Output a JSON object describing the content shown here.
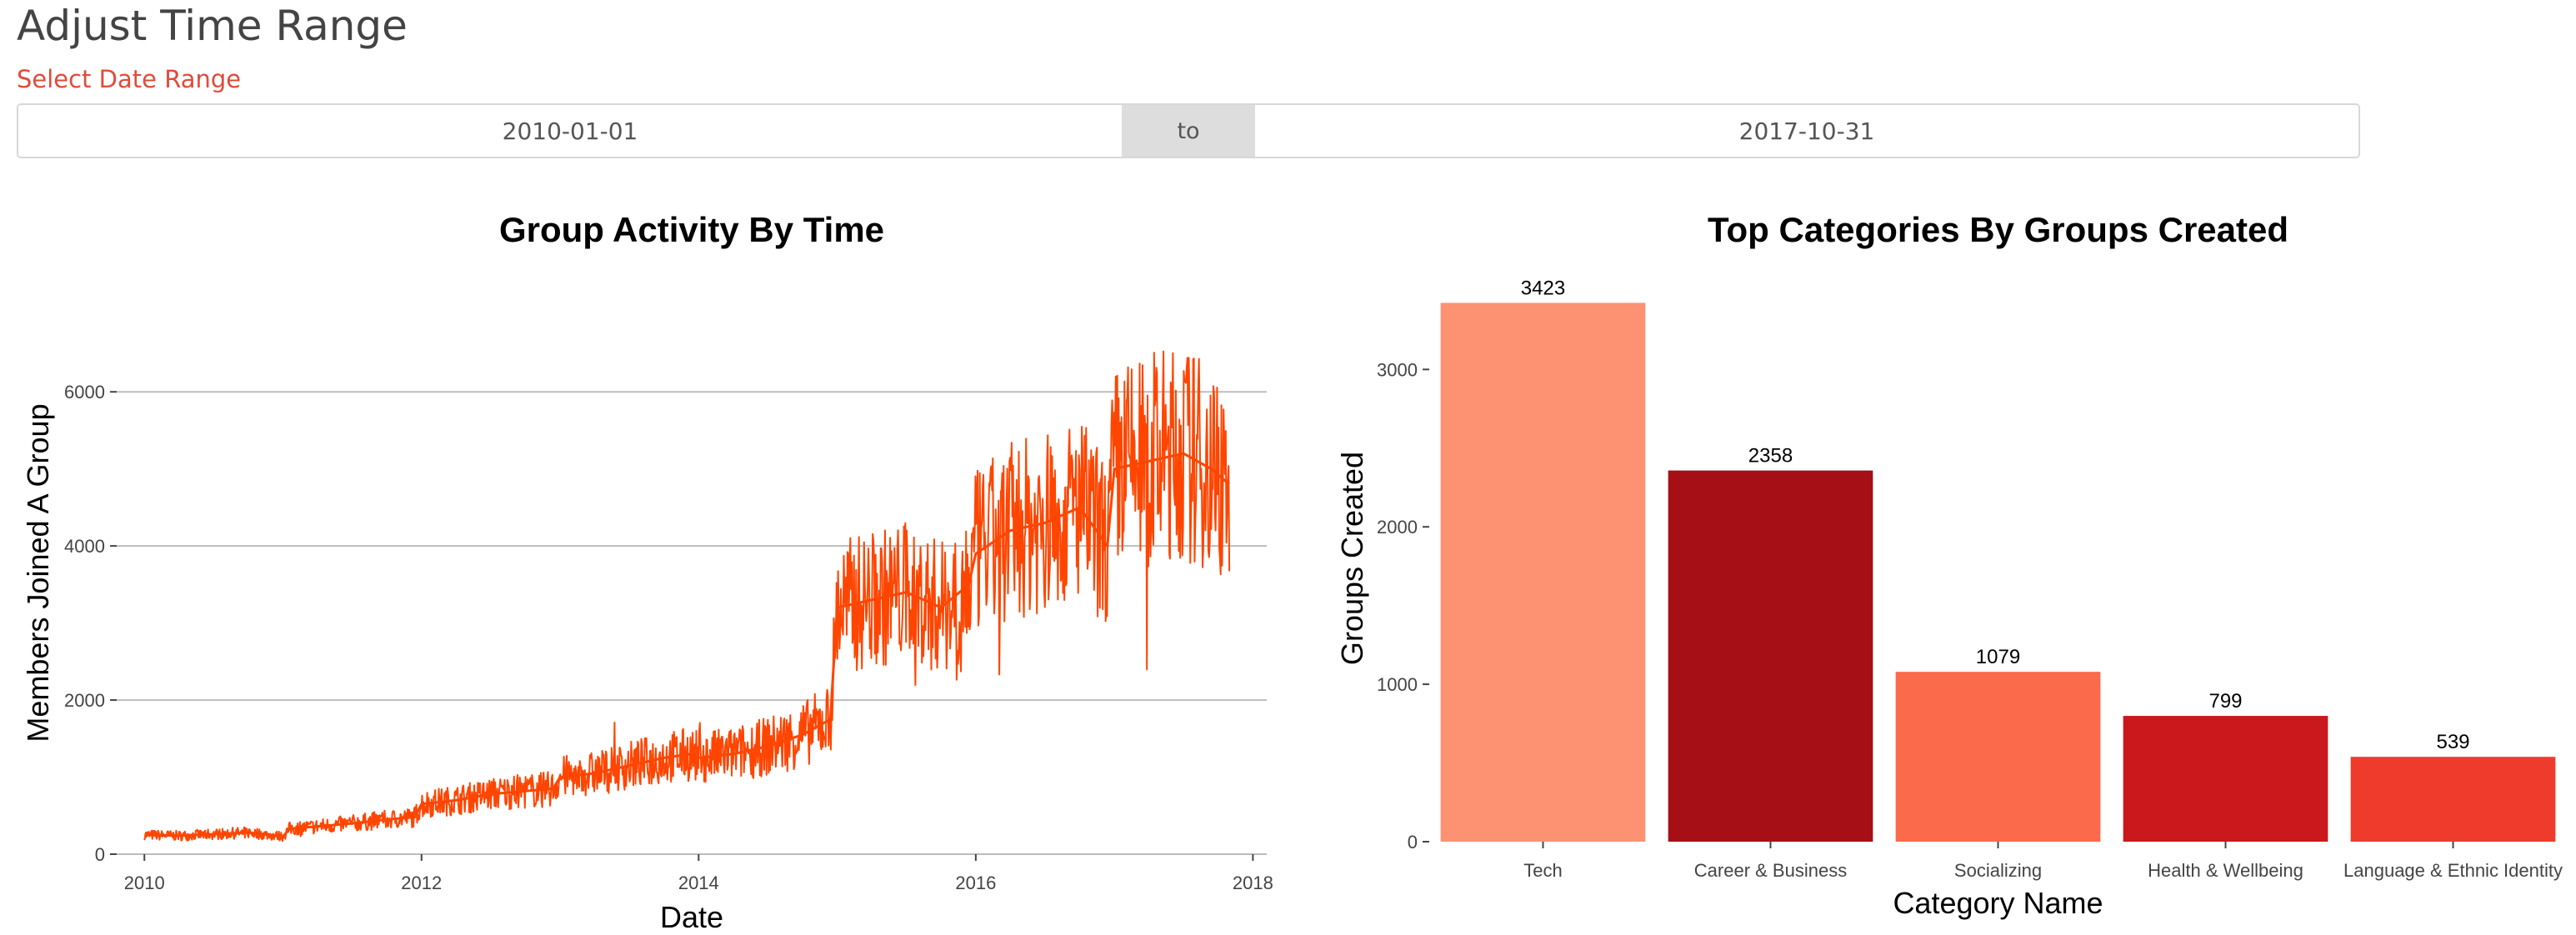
{
  "page": {
    "title": "Adjust Time Range",
    "range_label": "Select Date Range",
    "start_date": "2010-01-01",
    "separator": "to",
    "end_date": "2017-10-31"
  },
  "colors": {
    "line": "#ff4500",
    "title_text": "#444444",
    "label_text": "#e04b3a",
    "grid": "#bdbdbd"
  },
  "chart_data": [
    {
      "type": "line",
      "title": "Group Activity By Time",
      "xlabel": "Date",
      "ylabel": "Members Joined A Group",
      "xlim": [
        2009.8,
        2018.1
      ],
      "ylim": [
        0,
        7300
      ],
      "x_ticks": [
        2010,
        2012,
        2014,
        2016,
        2018
      ],
      "y_ticks": [
        0,
        2000,
        4000,
        6000
      ],
      "grid": "horizontal",
      "series": [
        {
          "x": [
            2010.0,
            2010.25,
            2010.5,
            2010.75,
            2011.0,
            2011.05,
            2011.25,
            2011.5,
            2011.75,
            2011.95,
            2012.0,
            2012.25,
            2012.5,
            2012.75,
            2012.95,
            2013.0,
            2013.25,
            2013.5,
            2013.75,
            2013.95,
            2014.0,
            2014.25,
            2014.5,
            2014.75,
            2014.95,
            2015.0,
            2015.25,
            2015.5,
            2015.75,
            2015.95,
            2016.0,
            2016.25,
            2016.5,
            2016.75,
            2016.95,
            2017.0,
            2017.25,
            2017.5,
            2017.7,
            2017.83
          ],
          "values": [
            250,
            240,
            260,
            280,
            230,
            330,
            360,
            400,
            450,
            480,
            650,
            700,
            780,
            820,
            850,
            1000,
            1050,
            1150,
            1250,
            1300,
            1250,
            1300,
            1400,
            1550,
            1750,
            3200,
            3300,
            3400,
            3200,
            3500,
            3900,
            4200,
            4300,
            4500,
            4000,
            5000,
            5100,
            5200,
            5000,
            4800
          ]
        }
      ]
    },
    {
      "type": "bar",
      "title": "Top Categories By Groups Created",
      "xlabel": "Category Name",
      "ylabel": "Groups Created",
      "ylim": [
        0,
        3600
      ],
      "y_ticks": [
        0,
        1000,
        2000,
        3000
      ],
      "categories": [
        "Tech",
        "Career & Business",
        "Socializing",
        "Health & Wellbeing",
        "Language & Ethnic Identity"
      ],
      "values": [
        3423,
        2358,
        1079,
        799,
        539
      ],
      "colors": [
        "#fc9272",
        "#a50f15",
        "#fb6a4a",
        "#cb181d",
        "#ef3b2c"
      ]
    }
  ]
}
